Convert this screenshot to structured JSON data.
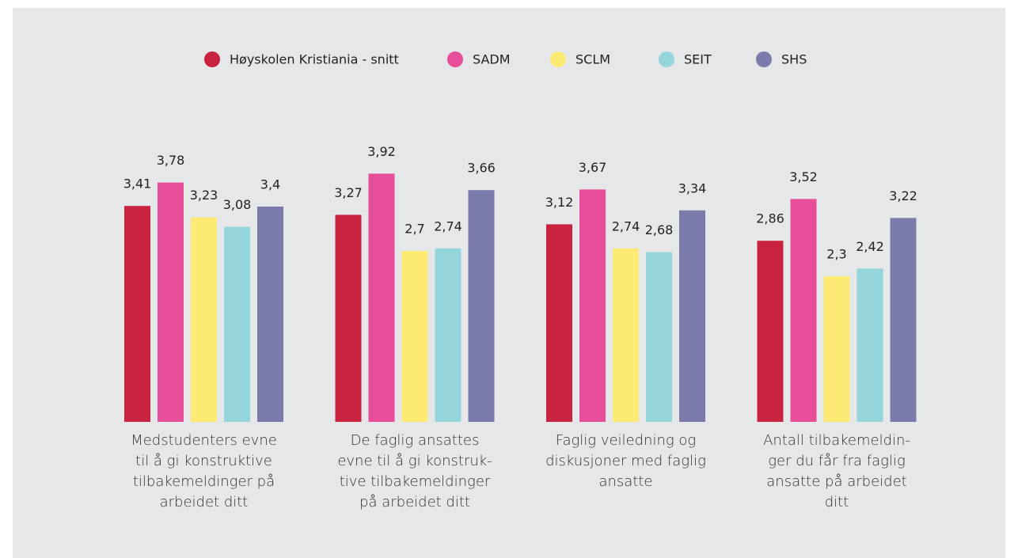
{
  "chart_data": {
    "type": "bar",
    "categories": [
      "Medstudenters evne\ntil å gi konstruktive\ntilbakemeldinger på\narbeidet ditt",
      "De faglig ansattes\nevne til å gi konstruk-\ntive tilbakemeldinger\npå arbeidet ditt",
      "Faglig veiledning og\ndiskusjoner med faglig\nansatte",
      "Antall tilbakemeldin-\nger du får fra faglig\nansatte på arbeidet\nditt"
    ],
    "series": [
      {
        "name": "Høyskolen Kristiania - snitt",
        "color": "#c8223f",
        "values": [
          3.41,
          3.27,
          3.12,
          2.86
        ],
        "value_labels": [
          "3,41",
          "3,27",
          "3,12",
          "2,86"
        ]
      },
      {
        "name": "SADM",
        "color": "#e84d9a",
        "values": [
          3.78,
          3.92,
          3.67,
          3.52
        ],
        "value_labels": [
          "3,78",
          "3,92",
          "3,67",
          "3,52"
        ]
      },
      {
        "name": "SCLM",
        "color": "#fdea74",
        "values": [
          3.23,
          2.7,
          2.74,
          2.3
        ],
        "value_labels": [
          "3,23",
          "2,7",
          "2,74",
          "2,3"
        ]
      },
      {
        "name": "SEIT",
        "color": "#94d5dc",
        "values": [
          3.08,
          2.74,
          2.68,
          2.42
        ],
        "value_labels": [
          "3,08",
          "2,74",
          "2,68",
          "2,42"
        ]
      },
      {
        "name": "SHS",
        "color": "#7b7bab",
        "values": [
          3.4,
          3.66,
          3.34,
          3.22
        ],
        "value_labels": [
          "3,4",
          "3,66",
          "3,34",
          "3,22"
        ]
      }
    ]
  }
}
